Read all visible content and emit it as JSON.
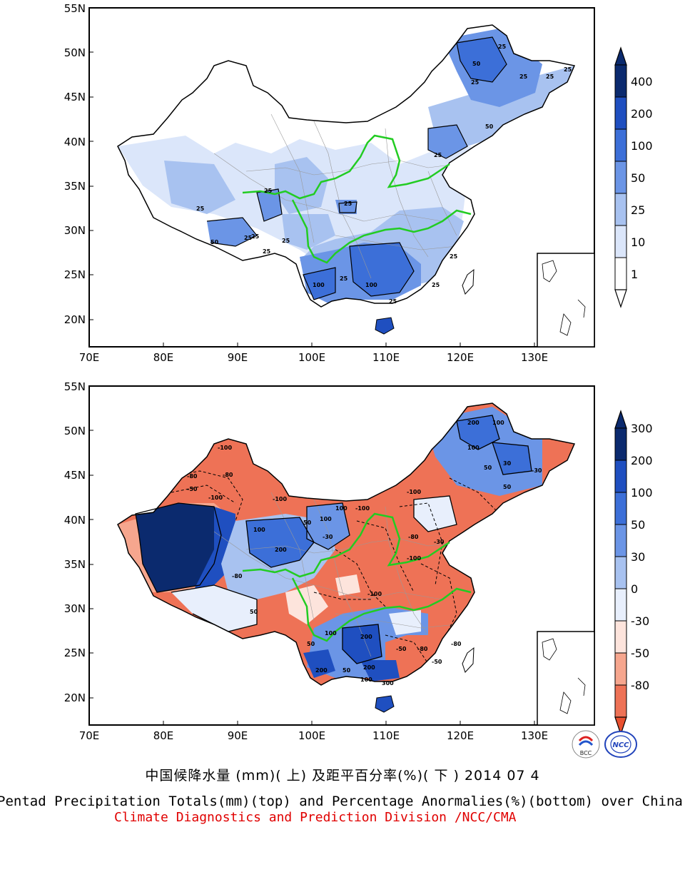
{
  "top_map": {
    "lat_labels": [
      "55N",
      "50N",
      "45N",
      "40N",
      "35N",
      "30N",
      "25N",
      "20N"
    ],
    "lon_labels": [
      "70E",
      "80E",
      "90E",
      "100E",
      "110E",
      "120E",
      "130E"
    ],
    "colorbar": {
      "labels": [
        "400",
        "200",
        "100",
        "50",
        "25",
        "10",
        "1"
      ],
      "colors": [
        "#0b2a6e",
        "#1f4fc0",
        "#3c6fd8",
        "#6b95e6",
        "#a8c2f0",
        "#dbe6fa",
        "#ffffff"
      ]
    },
    "contour_labels": [
      "25",
      "50",
      "25",
      "25",
      "25",
      "50",
      "25",
      "25",
      "50",
      "25",
      "25",
      "25",
      "25",
      "25",
      "25",
      "100",
      "100",
      "25",
      "25",
      "25",
      "25",
      "25"
    ]
  },
  "bottom_map": {
    "lat_labels": [
      "55N",
      "50N",
      "45N",
      "40N",
      "35N",
      "30N",
      "25N",
      "20N"
    ],
    "lon_labels": [
      "70E",
      "80E",
      "90E",
      "100E",
      "110E",
      "120E",
      "130E"
    ],
    "colorbar": {
      "labels": [
        "300",
        "200",
        "100",
        "50",
        "30",
        "0",
        "-30",
        "-50",
        "-80"
      ],
      "colors": [
        "#0b2a6e",
        "#1f4fc0",
        "#3c6fd8",
        "#6b95e6",
        "#a8c2f0",
        "#e8effc",
        "#fde4dc",
        "#f6a68e",
        "#ee7256",
        "#e8502f"
      ]
    },
    "contour_labels": [
      "-100",
      "-80",
      "-80",
      "-50",
      "-100",
      "-100",
      "100",
      "50",
      "100",
      "200",
      "-80",
      "50",
      "100",
      "-30",
      "200",
      "100",
      "50",
      "-100",
      "-80",
      "-100",
      "-100",
      "-30",
      "200",
      "50",
      "100",
      "200",
      "-50",
      "-80",
      "-50",
      "100",
      "300",
      "200",
      "50",
      "100",
      "-80",
      "-100",
      "50",
      "30",
      "-30"
    ]
  },
  "captions": {
    "chinese": "中国候降水量 (mm)( 上) 及距平百分率(%)( 下 ) 2014 07 4",
    "english": "Pentad Precipitation Totals(mm)(top) and Percentage Anormalies(%)(bottom) over China",
    "credit": "Climate Diagnostics and Prediction Division /NCC/CMA"
  },
  "logos": [
    "BCC",
    "NCC"
  ],
  "colors": {
    "river": "#22cc22",
    "credit": "#e00000"
  }
}
